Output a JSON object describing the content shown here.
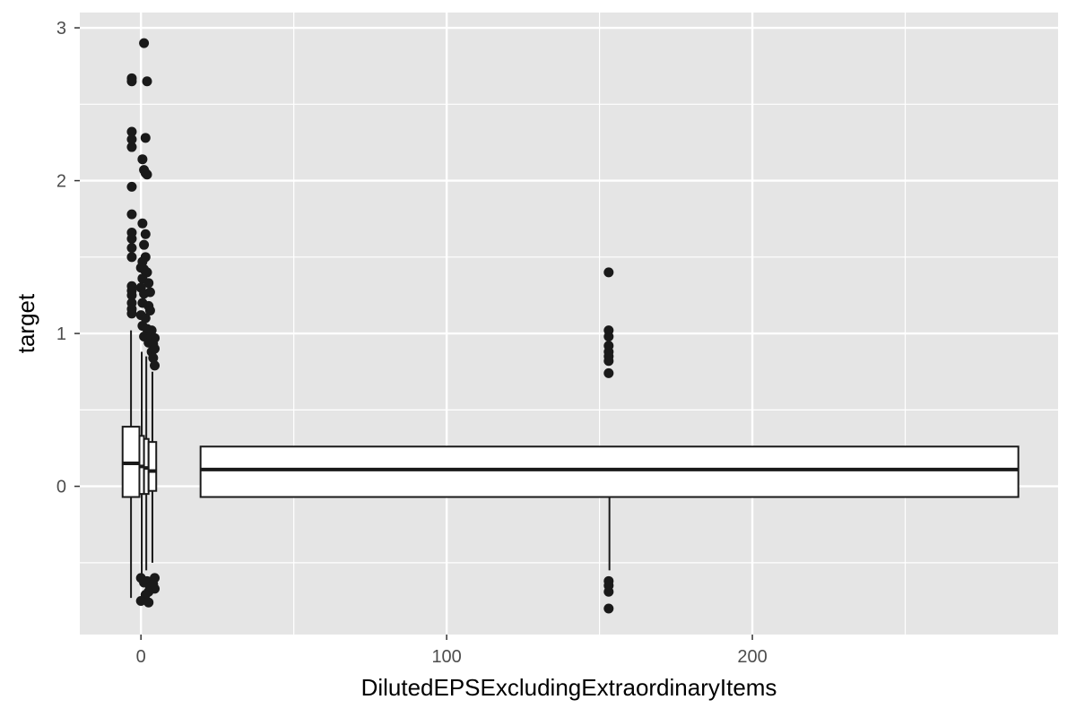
{
  "chart_data": {
    "type": "boxplot",
    "title": "",
    "xlabel": "DilutedEPSExcludingExtraordinaryItems",
    "ylabel": "target",
    "xlim": [
      -20,
      300
    ],
    "ylim": [
      -0.97,
      3.1
    ],
    "x_ticks": [
      0,
      100,
      200
    ],
    "x_minor_ticks": [
      50,
      150,
      250
    ],
    "y_ticks": [
      0,
      1,
      2,
      3
    ],
    "y_minor_ticks": [
      -0.5,
      0.5,
      1.5,
      2.5
    ],
    "grid": true,
    "legend": "none",
    "colors": {
      "panel": "#e5e5e5",
      "grid": "#ffffff",
      "box_fill": "#ffffff",
      "stroke": "#1a1a1a",
      "outlier": "#1a1a1a",
      "tick_text": "#4d4d4d"
    },
    "boxes": [
      {
        "x_left": -6,
        "x_right": -0.5,
        "q1": -0.07,
        "median": 0.15,
        "q3": 0.39,
        "whisker_low": -0.73,
        "whisker_high": 1.02
      },
      {
        "x_left": -0.5,
        "x_right": 1.0,
        "q1": -0.05,
        "median": 0.13,
        "q3": 0.33,
        "whisker_low": -0.58,
        "whisker_high": 0.88
      },
      {
        "x_left": 1.0,
        "x_right": 2.5,
        "q1": -0.05,
        "median": 0.12,
        "q3": 0.31,
        "whisker_low": -0.55,
        "whisker_high": 0.85
      },
      {
        "x_left": 2.5,
        "x_right": 5.0,
        "q1": -0.03,
        "median": 0.1,
        "q3": 0.29,
        "whisker_low": -0.5,
        "whisker_high": 0.75
      },
      {
        "x_left": 19.5,
        "x_right": 287,
        "q1": -0.07,
        "median": 0.11,
        "q3": 0.26,
        "whisker_low": -0.55,
        "whisker_high": 0.26
      }
    ],
    "outliers": [
      {
        "x": 1.0,
        "y": 2.9
      },
      {
        "x": -3.0,
        "y": 2.67
      },
      {
        "x": -3.0,
        "y": 2.65
      },
      {
        "x": 2.0,
        "y": 2.65
      },
      {
        "x": -3.0,
        "y": 2.32
      },
      {
        "x": -3.0,
        "y": 2.27
      },
      {
        "x": -3.0,
        "y": 2.22
      },
      {
        "x": 1.5,
        "y": 2.28
      },
      {
        "x": 0.5,
        "y": 2.14
      },
      {
        "x": 1.0,
        "y": 2.07
      },
      {
        "x": 1.5,
        "y": 2.05
      },
      {
        "x": 2.0,
        "y": 2.04
      },
      {
        "x": -3.0,
        "y": 1.96
      },
      {
        "x": -3.0,
        "y": 1.78
      },
      {
        "x": 0.5,
        "y": 1.72
      },
      {
        "x": -3.0,
        "y": 1.66
      },
      {
        "x": -3.0,
        "y": 1.62
      },
      {
        "x": 1.5,
        "y": 1.65
      },
      {
        "x": -3.0,
        "y": 1.56
      },
      {
        "x": -3.0,
        "y": 1.5
      },
      {
        "x": 1.0,
        "y": 1.58
      },
      {
        "x": 1.5,
        "y": 1.5
      },
      {
        "x": 0.5,
        "y": 1.47
      },
      {
        "x": 0.0,
        "y": 1.43
      },
      {
        "x": 1.0,
        "y": 1.42
      },
      {
        "x": 2.0,
        "y": 1.4
      },
      {
        "x": 0.5,
        "y": 1.36
      },
      {
        "x": 2.5,
        "y": 1.33
      },
      {
        "x": -3.0,
        "y": 1.31
      },
      {
        "x": -3.0,
        "y": 1.28
      },
      {
        "x": -3.0,
        "y": 1.25
      },
      {
        "x": -3.0,
        "y": 1.2
      },
      {
        "x": -3.0,
        "y": 1.16
      },
      {
        "x": -3.0,
        "y": 1.13
      },
      {
        "x": 0.0,
        "y": 1.3
      },
      {
        "x": 1.0,
        "y": 1.26
      },
      {
        "x": 3.0,
        "y": 1.27
      },
      {
        "x": 0.5,
        "y": 1.2
      },
      {
        "x": 2.5,
        "y": 1.18
      },
      {
        "x": 0.0,
        "y": 1.12
      },
      {
        "x": 1.5,
        "y": 1.1
      },
      {
        "x": 3.0,
        "y": 1.15
      },
      {
        "x": 0.5,
        "y": 1.05
      },
      {
        "x": 2.0,
        "y": 1.03
      },
      {
        "x": 3.5,
        "y": 1.02
      },
      {
        "x": 1.0,
        "y": 0.98
      },
      {
        "x": 3.0,
        "y": 0.97
      },
      {
        "x": 4.5,
        "y": 0.97
      },
      {
        "x": 2.5,
        "y": 0.94
      },
      {
        "x": 4.0,
        "y": 0.93
      },
      {
        "x": 3.5,
        "y": 0.88
      },
      {
        "x": 4.5,
        "y": 0.9
      },
      {
        "x": 4.0,
        "y": 0.84
      },
      {
        "x": 4.5,
        "y": 0.79
      },
      {
        "x": 0.0,
        "y": -0.6
      },
      {
        "x": 1.0,
        "y": -0.63
      },
      {
        "x": 2.0,
        "y": -0.62
      },
      {
        "x": 4.5,
        "y": -0.6
      },
      {
        "x": 4.0,
        "y": -0.64
      },
      {
        "x": 3.0,
        "y": -0.66
      },
      {
        "x": 4.5,
        "y": -0.67
      },
      {
        "x": 2.5,
        "y": -0.69
      },
      {
        "x": 1.5,
        "y": -0.71
      },
      {
        "x": 0.0,
        "y": -0.75
      },
      {
        "x": 2.5,
        "y": -0.76
      },
      {
        "x": 153,
        "y": 1.4
      },
      {
        "x": 153,
        "y": 1.02
      },
      {
        "x": 153,
        "y": 0.98
      },
      {
        "x": 153,
        "y": 0.92
      },
      {
        "x": 153,
        "y": 0.88
      },
      {
        "x": 153,
        "y": 0.85
      },
      {
        "x": 153,
        "y": 0.82
      },
      {
        "x": 153,
        "y": 0.74
      },
      {
        "x": 153,
        "y": -0.62
      },
      {
        "x": 153,
        "y": -0.65
      },
      {
        "x": 153,
        "y": -0.69
      },
      {
        "x": 153,
        "y": -0.8
      }
    ]
  }
}
